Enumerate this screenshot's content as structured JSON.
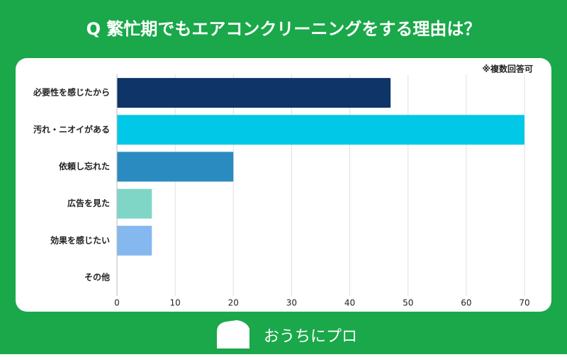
{
  "chart_data": {
    "type": "hbar",
    "title": "Q 繁忙期でもエアコンクリーニングをする理由は？",
    "note": "※複数回答可",
    "categories": [
      "必要性を感じたから",
      "汚れ・ニオイがある",
      "依頼し忘れた",
      "広告を見た",
      "効果を感じたい",
      "その他"
    ],
    "values": [
      47,
      70,
      20,
      6,
      6,
      0
    ],
    "colors": [
      "#0e3468",
      "#00c8e6",
      "#2a8bc0",
      "#7fd6c6",
      "#85b8ee",
      "#cccccc"
    ],
    "xlim": [
      0,
      70
    ],
    "xticks": [
      0,
      10,
      20,
      30,
      40,
      50,
      60,
      70
    ],
    "grid": true
  },
  "brand": "おうちにプロ"
}
